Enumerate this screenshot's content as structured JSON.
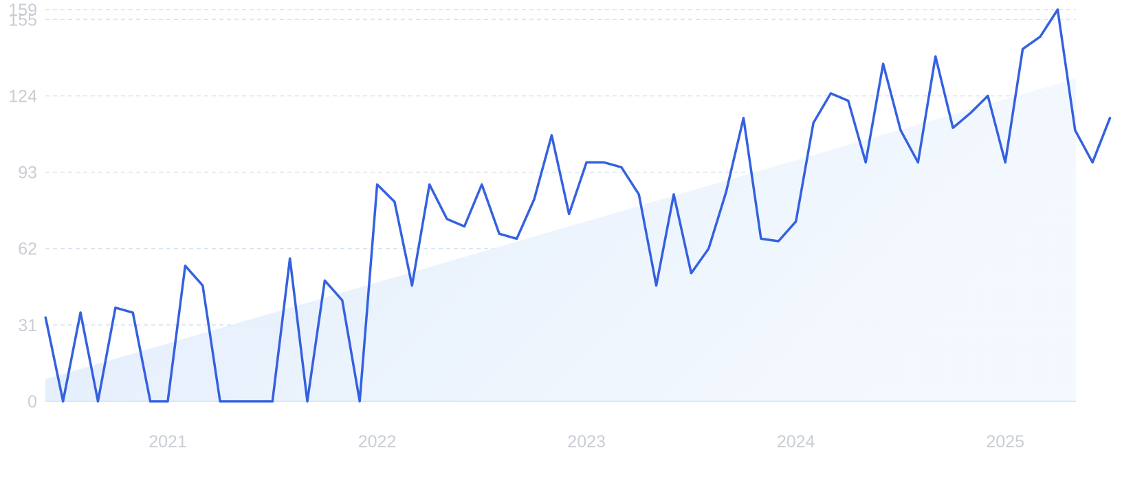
{
  "chart_data": {
    "type": "line",
    "title": "",
    "xlabel": "",
    "ylabel": "",
    "x_ticks": [
      "2021",
      "2022",
      "2023",
      "2024",
      "2025"
    ],
    "y_ticks": [
      0,
      31,
      62,
      93,
      124,
      155,
      159
    ],
    "ylim": [
      0,
      159
    ],
    "grid": true,
    "legend": "none",
    "colors": {
      "line": "#3461e0",
      "trend_fill": "#e3eefb",
      "grid": "#d6e4f0",
      "baseline": "#cfe2f3",
      "tick_text": "#c9cdd4"
    },
    "series": [
      {
        "style": "line",
        "x": [
          "2020-06",
          "2020-07",
          "2020-08",
          "2020-09",
          "2020-10",
          "2020-11",
          "2020-12",
          "2021-01",
          "2021-02",
          "2021-03",
          "2021-04",
          "2021-05",
          "2021-06",
          "2021-07",
          "2021-08",
          "2021-09",
          "2021-10",
          "2021-11",
          "2021-12",
          "2022-01",
          "2022-02",
          "2022-03",
          "2022-04",
          "2022-05",
          "2022-06",
          "2022-07",
          "2022-08",
          "2022-09",
          "2022-10",
          "2022-11",
          "2022-12",
          "2023-01",
          "2023-02",
          "2023-03",
          "2023-04",
          "2023-05",
          "2023-06",
          "2023-07",
          "2023-08",
          "2023-09",
          "2023-10",
          "2023-11",
          "2023-12",
          "2024-01",
          "2024-02",
          "2024-03",
          "2024-04",
          "2024-05",
          "2024-06",
          "2024-07",
          "2024-08",
          "2024-09",
          "2024-10",
          "2024-11",
          "2024-12",
          "2025-01",
          "2025-02",
          "2025-03",
          "2025-04",
          "2025-05",
          "2025-06",
          "2025-07"
        ],
        "values": [
          34,
          0,
          36,
          0,
          38,
          36,
          0,
          0,
          55,
          47,
          0,
          0,
          0,
          0,
          58,
          0,
          49,
          41,
          0,
          88,
          81,
          47,
          88,
          74,
          71,
          88,
          68,
          66,
          82,
          108,
          76,
          97,
          97,
          95,
          84,
          47,
          84,
          52,
          62,
          85,
          115,
          66,
          65,
          73,
          113,
          125,
          122,
          97,
          137,
          110,
          97,
          140,
          111,
          117,
          124,
          97,
          143,
          148,
          159,
          110,
          97,
          115
        ]
      },
      {
        "style": "area",
        "x": [
          "2020-06",
          "2025-06"
        ],
        "values": [
          9,
          133
        ]
      }
    ]
  }
}
